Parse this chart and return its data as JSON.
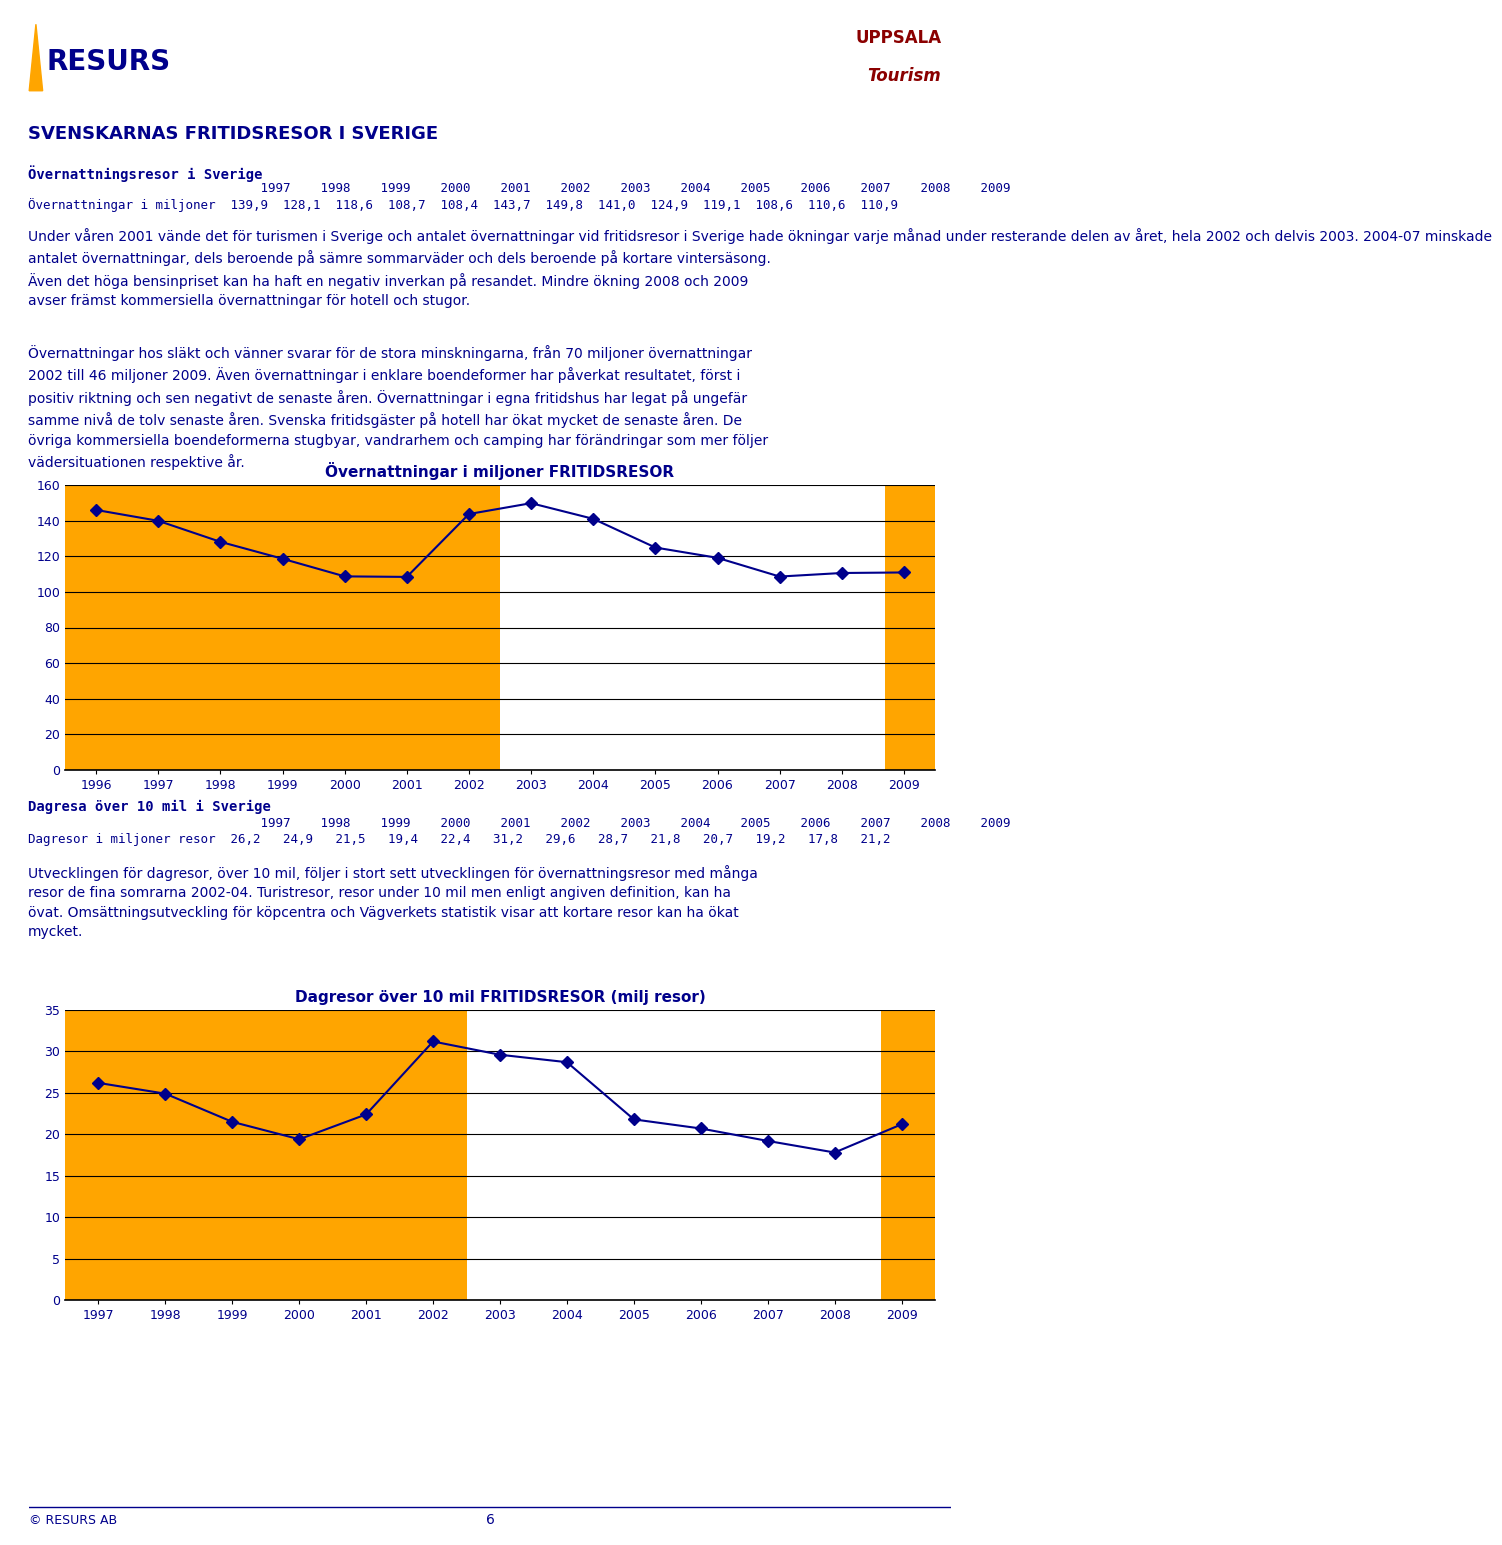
{
  "page_bg": "#ffffff",
  "text_color": "#00008B",
  "title_main": "SVENSKARNAS FRITIDSRESOR I SVERIGE",
  "section1_title": "Övernattningsresor i Sverige",
  "section1_years": "                               1997    1998    1999    2000    2001    2002    2003    2004    2005    2006    2007    2008    2009",
  "section1_row": "Övernattningar i miljoner  139,9  128,1  118,6  108,7  108,4  143,7  149,8  141,0  124,9  119,1  108,6  110,6  110,9",
  "section1_text1": "Under våren 2001 vände det för turismen i Sverige och antalet övernattningar vid fritidsresor i Sverige hade ökningar varje månad under resterande delen av året, hela 2002 och delvis 2003. 2004-07 minskade\nantalet övernattningar, dels beroende på sämre sommarväder och dels beroende på kortare vintersäsong.\nÄven det höga bensinpriset kan ha haft en negativ inverkan på resandet. Mindre ökning 2008 och 2009\navser främst kommersiella övernattningar för hotell och stugor.",
  "section1_text2": "Övernattningar hos släkt och vänner svarar för de stora minskningarna, från 70 miljoner övernattningar\n2002 till 46 miljoner 2009. Även övernattningar i enklare boendeformer har påverkat resultatet, först i\npositiv riktning och sen negativt de senaste åren. Övernattningar i egna fritidshus har legat på ungefär\nsamme nivå de tolv senaste åren. Svenska fritidsgäster på hotell har ökat mycket de senaste åren. De\növriga kommersiella boendeformerna stugbyar, vandrarhem och camping har förändringar som mer följer\nvädersituationen respektive år.",
  "chart1_title": "Övernattningar i miljoner FRITIDSRESOR",
  "chart1_x": [
    1996,
    1997,
    1998,
    1999,
    2000,
    2001,
    2002,
    2003,
    2004,
    2005,
    2006,
    2007,
    2008,
    2009
  ],
  "chart1_y": [
    146.0,
    139.9,
    128.1,
    118.6,
    108.7,
    108.4,
    143.7,
    149.8,
    141.0,
    124.9,
    119.1,
    108.6,
    110.6,
    110.9
  ],
  "chart1_ylim": [
    0,
    160
  ],
  "chart1_yticks": [
    0,
    20,
    40,
    60,
    80,
    100,
    120,
    140,
    160
  ],
  "chart1_bar_color": "#FFA500",
  "section2_title": "Dagresa över 10 mil i Sverige",
  "section2_years": "                               1997    1998    1999    2000    2001    2002    2003    2004    2005    2006    2007    2008    2009",
  "section2_row": "Dagresor i miljoner resor  26,2   24,9   21,5   19,4   22,4   31,2   29,6   28,7   21,8   20,7   19,2   17,8   21,2",
  "section2_text": "Utvecklingen för dagresor, över 10 mil, följer i stort sett utvecklingen för övernattningsresor med många\nresor de fina somrarna 2002-04. Turistresor, resor under 10 mil men enligt angiven definition, kan ha\növat. Omsättningsutveckling för köpcentra och Vägverkets statistik visar att kortare resor kan ha ökat\nmycket.",
  "chart2_title": "Dagresor över 10 mil FRITIDSRESOR (milj resor)",
  "chart2_x": [
    1997,
    1998,
    1999,
    2000,
    2001,
    2002,
    2003,
    2004,
    2005,
    2006,
    2007,
    2008,
    2009
  ],
  "chart2_y": [
    26.2,
    24.9,
    21.5,
    19.4,
    22.4,
    31.2,
    29.6,
    28.7,
    21.8,
    20.7,
    19.2,
    17.8,
    21.2
  ],
  "chart2_ylim": [
    0,
    35
  ],
  "chart2_yticks": [
    0,
    5,
    10,
    15,
    20,
    25,
    30,
    35
  ],
  "chart2_bar_color": "#FFA500",
  "line_color": "#00008B",
  "marker_color": "#00008B",
  "footer_text": "© RESURS AB",
  "page_number": "6"
}
